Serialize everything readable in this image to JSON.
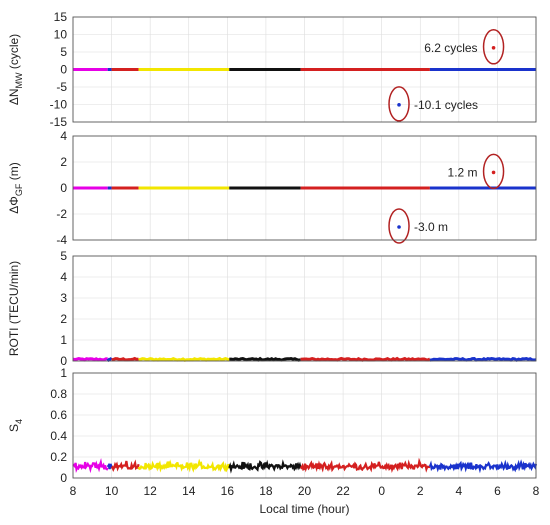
{
  "chart_data": {
    "type": "line",
    "x_axis": {
      "label": "Local time (hour)",
      "tick_labels": [
        "8",
        "10",
        "12",
        "14",
        "16",
        "18",
        "20",
        "22",
        "0",
        "2",
        "4",
        "6",
        "8"
      ],
      "range_hours_elapsed": [
        0,
        24
      ]
    },
    "segment_colors": [
      "#e600e6",
      "#1a33cc",
      "#d42020",
      "#f2e600",
      "#111111",
      "#d42020",
      "#1a33cc"
    ],
    "segment_bounds_local_time": [
      8,
      9.8,
      10,
      11.4,
      16.1,
      19.8,
      2.5,
      8
    ],
    "panels": [
      {
        "id": "mw",
        "ylabel": "ΔN",
        "ylabel_sub": "MW",
        "ylabel_suffix": " (cycle)",
        "ylim": [
          -15,
          15
        ],
        "ytick_labels": [
          "-15",
          "-10",
          "-5",
          "0",
          "5",
          "10",
          "15"
        ],
        "baseline": 0,
        "outliers": [
          {
            "local_time": 5.8,
            "value": 6.2,
            "label": "6.2 cycles",
            "color": "#d42020"
          },
          {
            "local_time": 0.9,
            "value": -10.1,
            "label": "-10.1 cycles",
            "color": "#1a33cc"
          }
        ]
      },
      {
        "id": "gf",
        "ylabel": "ΔΦ",
        "ylabel_sub": "GF",
        "ylabel_suffix": " (m)",
        "ylim": [
          -4,
          4
        ],
        "ytick_labels": [
          "-4",
          "-2",
          "0",
          "2",
          "4"
        ],
        "baseline": 0,
        "outliers": [
          {
            "local_time": 5.8,
            "value": 1.2,
            "label": "1.2 m",
            "color": "#d42020"
          },
          {
            "local_time": 0.9,
            "value": -3.0,
            "label": "-3.0 m",
            "color": "#1a33cc"
          }
        ]
      },
      {
        "id": "roti",
        "ylabel": "ROTI (TECU/min)",
        "ylim": [
          0,
          5
        ],
        "ytick_labels": [
          "0",
          "1",
          "2",
          "3",
          "4",
          "5"
        ],
        "typical_value": 0.08
      },
      {
        "id": "s4",
        "ylabel": "S",
        "ylabel_sub": "4",
        "ylim": [
          0,
          1
        ],
        "ytick_labels": [
          "0",
          "0.2",
          "0.4",
          "0.6",
          "0.8",
          "1"
        ],
        "typical_value": 0.08,
        "noise_range": [
          0.03,
          0.17
        ]
      }
    ]
  }
}
